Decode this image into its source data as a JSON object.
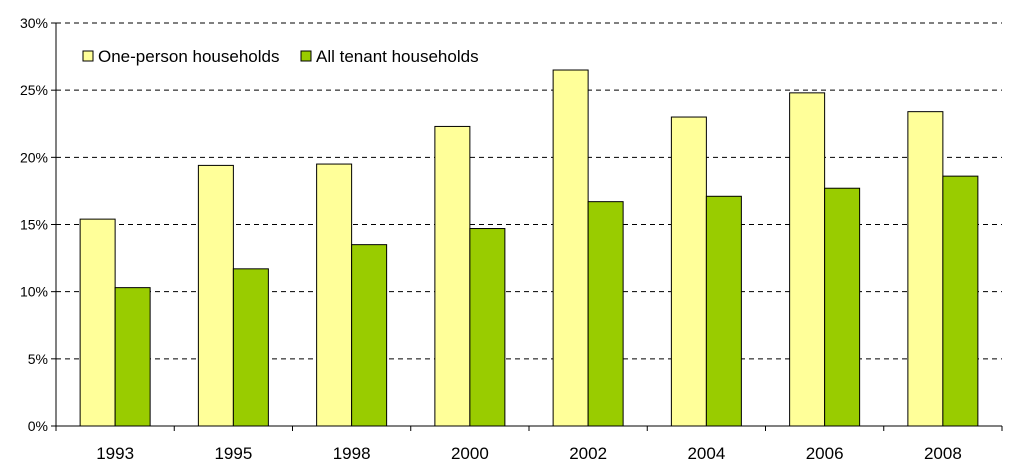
{
  "chart_data": {
    "type": "bar",
    "title": "",
    "xlabel": "",
    "ylabel": "",
    "categories": [
      "1993",
      "1995",
      "1998",
      "2000",
      "2002",
      "2004",
      "2006",
      "2008"
    ],
    "series": [
      {
        "name": "One-person households",
        "color": "#ffff99",
        "values": [
          15.4,
          19.4,
          19.5,
          22.3,
          26.5,
          23.0,
          24.8,
          23.4
        ]
      },
      {
        "name": "All tenant households",
        "color": "#99cc00",
        "values": [
          10.3,
          11.7,
          13.5,
          14.7,
          16.7,
          17.1,
          17.7,
          18.6
        ]
      }
    ],
    "ylim": [
      0,
      30
    ],
    "yticks": [
      "0%",
      "5%",
      "10%",
      "15%",
      "20%",
      "25%",
      "30%"
    ],
    "grid": "horizontal dashed",
    "legend_position": "top-left"
  }
}
